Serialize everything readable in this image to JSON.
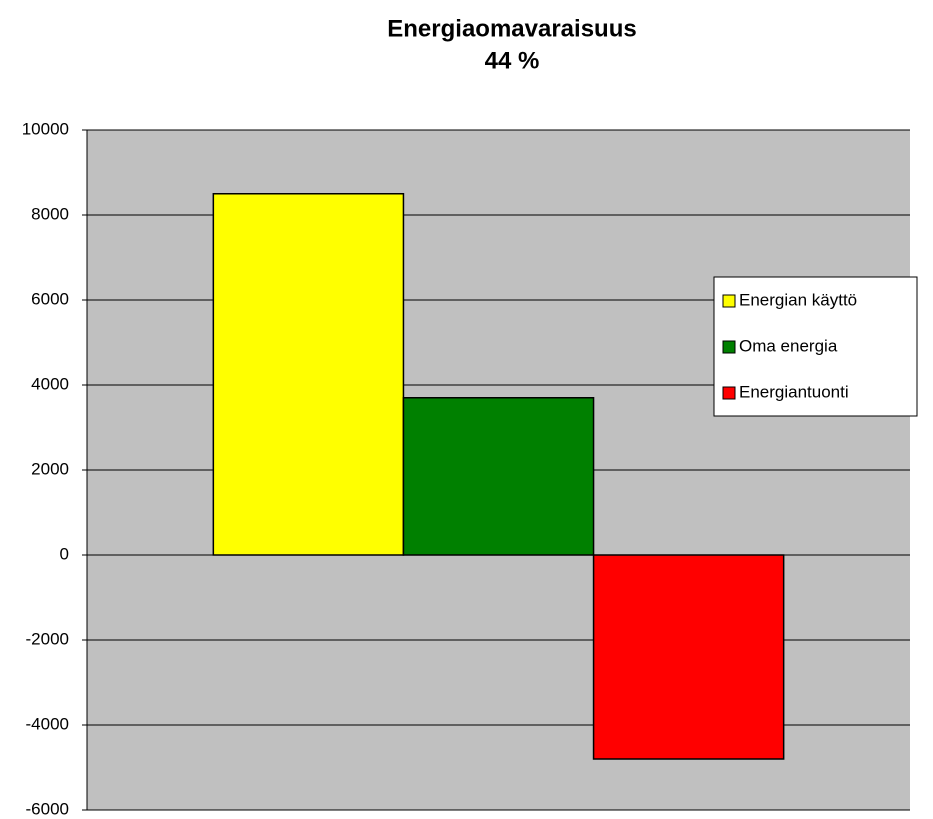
{
  "chart_data": {
    "type": "bar",
    "title": "Energiaomavaraisuus",
    "subtitle": "44 %",
    "categories": [
      null
    ],
    "series": [
      {
        "name": "Energian käyttö",
        "color": "#ffff00",
        "values": [
          8500
        ]
      },
      {
        "name": "Oma energia",
        "color": "#008000",
        "values": [
          3700
        ]
      },
      {
        "name": "Energiantuonti",
        "color": "#ff0000",
        "values": [
          -4800
        ]
      }
    ],
    "ylim": [
      -6000,
      10000
    ],
    "yticks": [
      -6000,
      -4000,
      -2000,
      0,
      2000,
      4000,
      6000,
      8000,
      10000
    ],
    "grid": true,
    "legend": "right",
    "plot_background": "#c0c0c0"
  }
}
